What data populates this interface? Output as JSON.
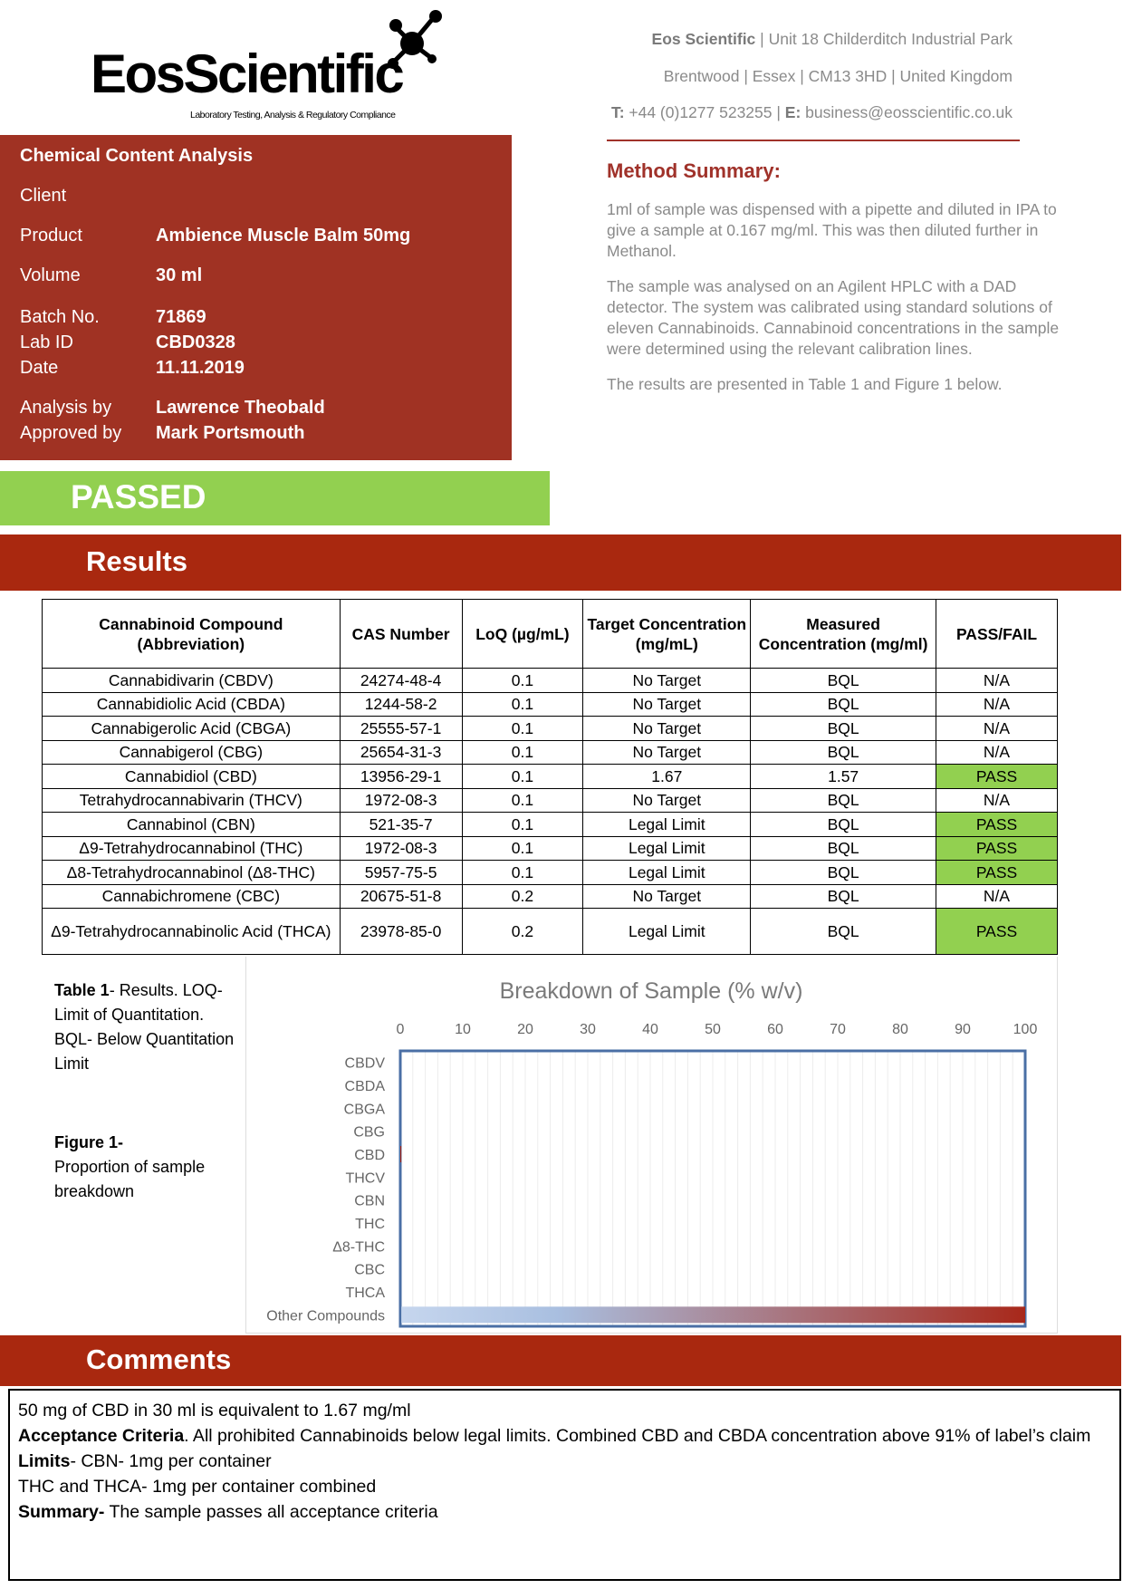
{
  "header": {
    "logo_text": "EosScientific",
    "logo_tagline": "Laboratory Testing, Analysis & Regulatory Compliance",
    "address": {
      "company": "Eos Scientific",
      "line1": " | Unit 18 Childerditch Industrial Park",
      "line2": "Brentwood | Essex | CM13 3HD | United Kingdom",
      "tel_label": "T:",
      "tel": " +44 (0)1277 523255 | ",
      "email_label": "E:",
      "email": " business@eosscientific.co.uk"
    }
  },
  "info": {
    "title": "Chemical Content Analysis",
    "rows": [
      {
        "label": "Client",
        "value": ""
      },
      {
        "label": "Product",
        "value": "Ambience Muscle Balm 50mg"
      },
      {
        "label": "Volume",
        "value": "30 ml"
      },
      {
        "label": "Batch No.",
        "value": "71869"
      },
      {
        "label": "Lab ID",
        "value": "CBD0328"
      },
      {
        "label": "Date",
        "value": "11.11.2019"
      },
      {
        "label": "Analysis by",
        "value": "Lawrence Theobald"
      },
      {
        "label": "Approved by",
        "value": "Mark Portsmouth"
      }
    ]
  },
  "method": {
    "title": "Method Summary:",
    "paragraphs": [
      "1ml of sample was dispensed with a pipette and diluted in IPA to give a sample at 0.167 mg/ml. This was then diluted further in Methanol.",
      "The sample was analysed on an Agilent HPLC with a DAD detector. The system was calibrated using standard solutions of eleven Cannabinoids. Cannabinoid concentrations in the sample were determined using the relevant calibration lines.",
      "The results are presented in Table 1 and Figure 1 below."
    ]
  },
  "status": {
    "label": "PASSED",
    "color": "#92d050"
  },
  "results": {
    "title": "Results",
    "headers": [
      "Cannabinoid Compound (Abbreviation)",
      "CAS Number",
      "LoQ (µg/mL)",
      "Target Concentration (mg/mL)",
      "Measured Concentration (mg/ml)",
      "PASS/FAIL"
    ],
    "rows": [
      [
        "Cannabidivarin (CBDV)",
        "24274-48-4",
        "0.1",
        "No Target",
        "BQL",
        "N/A"
      ],
      [
        "Cannabidiolic Acid (CBDA)",
        "1244-58-2",
        "0.1",
        "No Target",
        "BQL",
        "N/A"
      ],
      [
        "Cannabigerolic Acid (CBGA)",
        "25555-57-1",
        "0.1",
        "No Target",
        "BQL",
        "N/A"
      ],
      [
        "Cannabigerol (CBG)",
        "25654-31-3",
        "0.1",
        "No Target",
        "BQL",
        "N/A"
      ],
      [
        "Cannabidiol (CBD)",
        "13956-29-1",
        "0.1",
        "1.67",
        "1.57",
        "PASS"
      ],
      [
        "Tetrahydrocannabivarin (THCV)",
        "1972-08-3",
        "0.1",
        "No Target",
        "BQL",
        "N/A"
      ],
      [
        "Cannabinol (CBN)",
        "521-35-7",
        "0.1",
        "Legal Limit",
        "BQL",
        "PASS"
      ],
      [
        "Δ9-Tetrahydrocannabinol (THC)",
        "1972-08-3",
        "0.1",
        "Legal Limit",
        "BQL",
        "PASS"
      ],
      [
        "Δ8-Tetrahydrocannabinol (Δ8-THC)",
        "5957-75-5",
        "0.1",
        "Legal Limit",
        "BQL",
        "PASS"
      ],
      [
        "Cannabichromene (CBC)",
        "20675-51-8",
        "0.2",
        "No Target",
        "BQL",
        "N/A"
      ],
      [
        "Δ9-Tetrahydrocannabinolic Acid (THCA)",
        "23978-85-0",
        "0.2",
        "Legal Limit",
        "BQL",
        "PASS"
      ]
    ]
  },
  "captions": {
    "table_bold": "Table 1",
    "table_text": "- Results. LOQ-Limit of Quantitation. BQL- Below Quantitation Limit",
    "figure_bold": "Figure 1-",
    "figure_text": "Proportion of sample breakdown"
  },
  "chart_data": {
    "type": "bar",
    "orientation": "horizontal",
    "stacked": true,
    "title": "Breakdown of Sample (% w/v)",
    "categories": [
      "CBDV",
      "CBDA",
      "CBGA",
      "CBG",
      "CBD",
      "THCV",
      "CBN",
      "THC",
      "Δ8-THC",
      "CBC",
      "THCA",
      "Other Compounds"
    ],
    "values": [
      0,
      0,
      0,
      0,
      0.16,
      0,
      0,
      0,
      0,
      0,
      0,
      99.84
    ],
    "xlim": [
      0,
      100
    ],
    "xticks": [
      "0",
      "10",
      "20",
      "30",
      "40",
      "50",
      "60",
      "70",
      "80",
      "90",
      "100"
    ],
    "grid": true,
    "bar_gradient": [
      "#c6d6ee",
      "#a8281a"
    ]
  },
  "comments": {
    "title": "Comments",
    "line1": "50 mg of CBD in 30 ml is equivalent to 1.67 mg/ml",
    "acc_bold": "Acceptance Criteria",
    "acc_text": ". All prohibited Cannabinoids below legal limits. Combined CBD and CBDA concentration above 91% of label’s claim",
    "limits_bold": "Limits",
    "limits_text": "- CBN- 1mg per container",
    "line4": "THC and THCA- 1mg per container combined",
    "summary_bold": "Summary-",
    "summary_text": " The sample passes all acceptance criteria"
  }
}
